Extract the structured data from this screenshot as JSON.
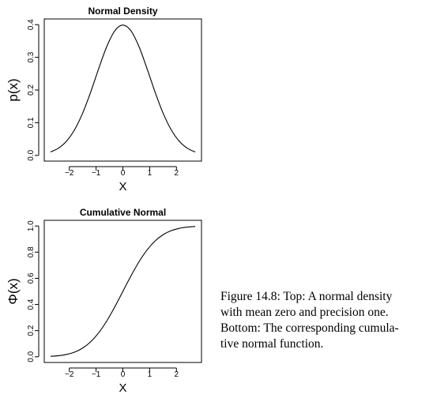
{
  "caption_lines": [
    "Figure 14.8: Top: A normal density",
    "with mean zero and precision one.",
    "Bottom: The corresponding cumula-",
    "tive normal function."
  ],
  "chart_data": [
    {
      "type": "line",
      "title": "Normal Density",
      "xlabel": "X",
      "ylabel": "p(x)",
      "xlim": [
        -2.7,
        2.7
      ],
      "ylim": [
        0.0,
        0.4
      ],
      "xticks": [
        -2,
        -1,
        0,
        1,
        2
      ],
      "xtick_labels": [
        "−2",
        "−1",
        "0",
        "1",
        "2"
      ],
      "yticks": [
        0.0,
        0.1,
        0.2,
        0.3,
        0.4
      ],
      "ytick_labels": [
        "0.0",
        "0.1",
        "0.2",
        "0.3",
        "0.4"
      ],
      "grid": false,
      "series": [
        {
          "x": [
            -2.7,
            -2.4,
            -2.1,
            -1.8,
            -1.5,
            -1.2,
            -0.9,
            -0.6,
            -0.3,
            0.0,
            0.3,
            0.6,
            0.9,
            1.2,
            1.5,
            1.8,
            2.1,
            2.4,
            2.7
          ],
          "y": [
            0.0104,
            0.0224,
            0.044,
            0.079,
            0.1295,
            0.1942,
            0.2661,
            0.3332,
            0.3814,
            0.3989,
            0.3814,
            0.3332,
            0.2661,
            0.1942,
            0.1295,
            0.079,
            0.044,
            0.0224,
            0.0104
          ]
        }
      ]
    },
    {
      "type": "line",
      "title": "Cumulative Normal",
      "xlabel": "X",
      "ylabel": "Φ(x)",
      "xlim": [
        -2.7,
        2.7
      ],
      "ylim": [
        0.0,
        1.0
      ],
      "xticks": [
        -2,
        -1,
        0,
        1,
        2
      ],
      "xtick_labels": [
        "−2",
        "−1",
        "0",
        "1",
        "2"
      ],
      "yticks": [
        0.0,
        0.2,
        0.4,
        0.6,
        0.8,
        1.0
      ],
      "ytick_labels": [
        "0.0",
        "0.2",
        "0.4",
        "0.6",
        "0.8",
        "1.0"
      ],
      "grid": false,
      "series": [
        {
          "x": [
            -2.7,
            -2.4,
            -2.1,
            -1.8,
            -1.5,
            -1.2,
            -0.9,
            -0.6,
            -0.3,
            0.0,
            0.3,
            0.6,
            0.9,
            1.2,
            1.5,
            1.8,
            2.1,
            2.4,
            2.7
          ],
          "y": [
            0.0035,
            0.0082,
            0.0179,
            0.0359,
            0.0668,
            0.1151,
            0.1841,
            0.2743,
            0.3821,
            0.5,
            0.6179,
            0.7257,
            0.8159,
            0.8849,
            0.9332,
            0.9641,
            0.9821,
            0.9918,
            0.9965
          ]
        }
      ]
    }
  ]
}
